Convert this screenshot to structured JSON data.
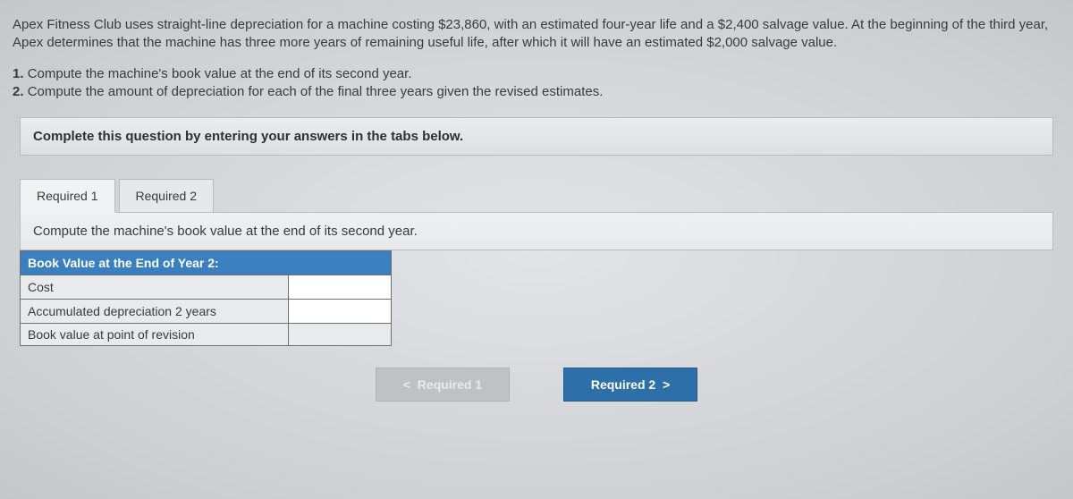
{
  "problem": {
    "text": "Apex Fitness Club uses straight-line depreciation for a machine costing $23,860, with an estimated four-year life and a $2,400 salvage value. At the beginning of the third year, Apex determines that the machine has three more years of remaining useful life, after which it will have an estimated $2,000 salvage value."
  },
  "questions": {
    "q1_num": "1.",
    "q1": "Compute the machine's book value at the end of its second year.",
    "q2_num": "2.",
    "q2": "Compute the amount of depreciation for each of the final three years given the revised estimates."
  },
  "instruction": "Complete this question by entering your answers in the tabs below.",
  "tabs": {
    "t1": "Required 1",
    "t2": "Required 2"
  },
  "panel_text": "Compute the machine's book value at the end of its second year.",
  "table": {
    "header": "Book Value at the End of Year 2:",
    "rows": [
      {
        "label": "Cost",
        "has_input": true,
        "value": ""
      },
      {
        "label": "Accumulated depreciation 2 years",
        "has_input": true,
        "value": ""
      },
      {
        "label": "Book value at point of revision",
        "has_input": false,
        "value": ""
      }
    ]
  },
  "nav": {
    "prev_chev": "<",
    "prev": "Required 1",
    "next": "Required 2",
    "next_chev": ">"
  },
  "colors": {
    "header_bg": "#3a80c0",
    "btn_next_bg": "#2d6fa8",
    "body_bg": "#d8dadd"
  }
}
